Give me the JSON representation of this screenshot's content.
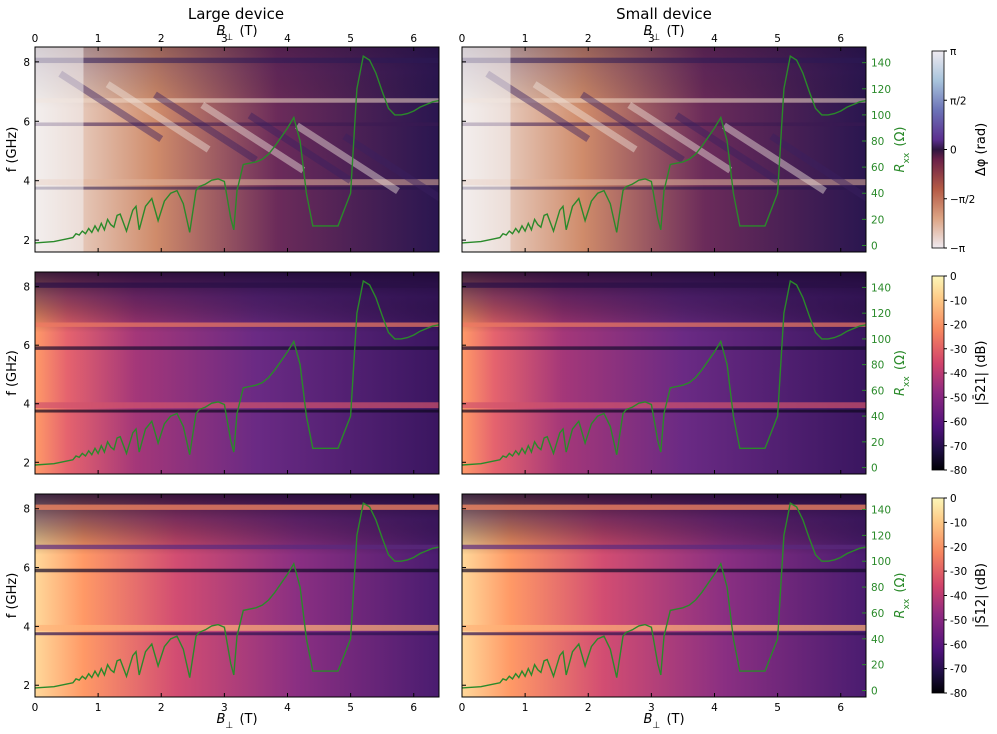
{
  "columns": [
    {
      "title": "Large device",
      "top_xlabel": "B_⊥ (T)"
    },
    {
      "title": "Small device",
      "top_xlabel": "B_⊥ (T)"
    }
  ],
  "axes": {
    "x_label": "B_⊥ (T)",
    "x_ticks": [
      "0",
      "1",
      "2",
      "3",
      "4",
      "5",
      "6"
    ],
    "x_range": [
      0,
      6.4
    ],
    "y_label": "f (GHz)",
    "y_ticks": [
      "2",
      "4",
      "6",
      "8"
    ],
    "y_range": [
      1.6,
      8.5
    ],
    "rxx_label": "R_xx (Ω)",
    "rxx_ticks": [
      "0",
      "20",
      "40",
      "60",
      "80",
      "100",
      "120",
      "140"
    ],
    "rxx_range": [
      -5,
      152
    ]
  },
  "colorbars": [
    {
      "label": "Δφ (rad)",
      "ticks": [
        "π",
        "π/2",
        "0",
        "−π/2",
        "−π"
      ],
      "colormap": "twilight"
    },
    {
      "label": "|S̄21| (dB)",
      "ticks": [
        "0",
        "-10",
        "-20",
        "-30",
        "-40",
        "-50",
        "-60",
        "-70",
        "-80"
      ],
      "colormap": "magma"
    },
    {
      "label": "|S̄12| (dB)",
      "ticks": [
        "0",
        "-10",
        "-20",
        "-30",
        "-40",
        "-50",
        "-60",
        "-70",
        "-80"
      ],
      "colormap": "magma"
    }
  ],
  "chart_data": {
    "type": "heatmap",
    "layout": "3 rows x 2 columns",
    "rows": [
      "Δφ (rad)",
      "|S̄21| (dB)",
      "|S̄12| (dB)"
    ],
    "columns": [
      "Large device",
      "Small device"
    ],
    "x": {
      "label": "B_⊥ (T)",
      "range": [
        0,
        6.4
      ]
    },
    "y": {
      "label": "f (GHz)",
      "range": [
        1.6,
        8.5
      ]
    },
    "overlay": {
      "type": "line",
      "color": "#2a8a2a",
      "axis": "R_xx (Ω)",
      "range": [
        -5,
        152
      ],
      "B": [
        0,
        0.3,
        0.5,
        0.6,
        0.65,
        0.7,
        0.75,
        0.8,
        0.85,
        0.9,
        0.95,
        1.0,
        1.05,
        1.1,
        1.15,
        1.2,
        1.25,
        1.3,
        1.35,
        1.45,
        1.55,
        1.6,
        1.65,
        1.75,
        1.85,
        1.95,
        2.05,
        2.15,
        2.25,
        2.35,
        2.45,
        2.55,
        2.6,
        2.7,
        2.8,
        2.9,
        3.0,
        3.1,
        3.15,
        3.2,
        3.3,
        3.4,
        3.5,
        3.6,
        3.7,
        3.8,
        3.9,
        4.0,
        4.1,
        4.2,
        4.3,
        4.4,
        4.5,
        4.6,
        4.7,
        4.8,
        5.0,
        5.1,
        5.2,
        5.3,
        5.4,
        5.5,
        5.6,
        5.7,
        5.8,
        5.9,
        6.0,
        6.1,
        6.2,
        6.3,
        6.4
      ],
      "Rxx": [
        2,
        3,
        5,
        6,
        9,
        8,
        11,
        9,
        13,
        10,
        15,
        11,
        17,
        12,
        20,
        16,
        14,
        23,
        24,
        11,
        27,
        30,
        12,
        30,
        36,
        19,
        34,
        40,
        42,
        32,
        10,
        42,
        45,
        47,
        50,
        51,
        49,
        21,
        12,
        42,
        62,
        63,
        64,
        66,
        70,
        76,
        83,
        90,
        98,
        80,
        40,
        15,
        15,
        15,
        15,
        15,
        40,
        120,
        145,
        142,
        132,
        118,
        105,
        100,
        100,
        101,
        103,
        106,
        108,
        110,
        111
      ]
    },
    "color_limits": {
      "phase": [
        -3.1416,
        3.1416
      ],
      "magnitude": [
        -80,
        0
      ]
    }
  }
}
